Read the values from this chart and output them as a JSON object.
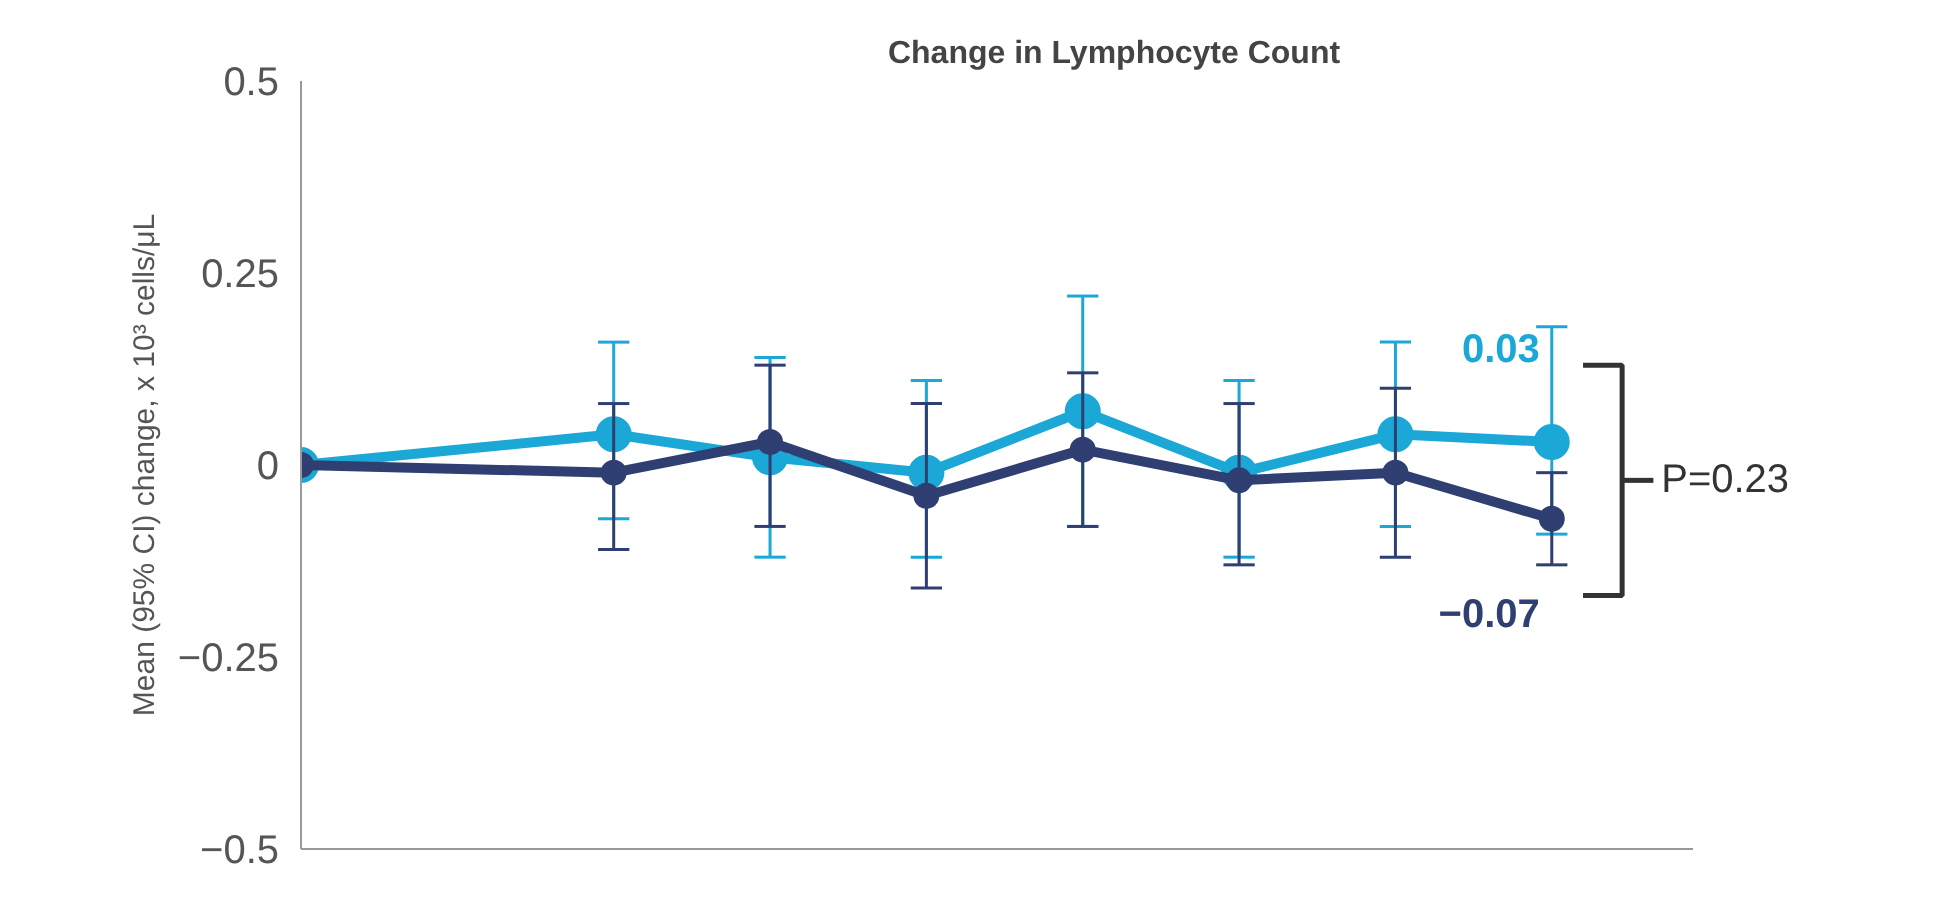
{
  "chart_data": {
    "type": "line",
    "title": "Change in Lymphocyte Count",
    "ylabel": "Mean (95% CI) change, x 10³ cells/μL",
    "categories": [
      null,
      null,
      null,
      null,
      null,
      null,
      null,
      null,
      null
    ],
    "series": [
      {
        "color": "#1ba8d6",
        "values": [
          0,
          null,
          0.04,
          0.01,
          -0.01,
          0.07,
          -0.01,
          0.04,
          0.03
        ],
        "errors": [
          null,
          null,
          [
            -0.07,
            0.16
          ],
          [
            -0.12,
            0.14
          ],
          [
            -0.12,
            0.11
          ],
          [
            -0.08,
            0.22
          ],
          [
            -0.12,
            0.11
          ],
          [
            -0.08,
            0.16
          ],
          [
            -0.09,
            0.18
          ]
        ],
        "value_labels": [
          null,
          null,
          null,
          null,
          null,
          null,
          null,
          null,
          "0.03"
        ]
      },
      {
        "color": "#2f3f72",
        "values": [
          0,
          null,
          -0.01,
          0.03,
          -0.04,
          0.02,
          -0.02,
          -0.01,
          -0.07
        ],
        "errors": [
          null,
          null,
          [
            -0.11,
            0.08
          ],
          [
            -0.08,
            0.13
          ],
          [
            -0.16,
            0.08
          ],
          [
            -0.08,
            0.12
          ],
          [
            -0.13,
            0.08
          ],
          [
            -0.12,
            0.1
          ],
          [
            -0.13,
            -0.01
          ]
        ],
        "value_labels": [
          null,
          null,
          null,
          null,
          null,
          null,
          null,
          null,
          "−0.07"
        ]
      }
    ],
    "ylim": [
      -0.5,
      0.5
    ],
    "yticks": [
      0.5,
      0.25,
      0,
      {
        "value": -0.25,
        "label": "−0.25"
      },
      {
        "value": -0.5,
        "label": "−0.5"
      }
    ],
    "marker": "circle",
    "grid": false,
    "annotations": [
      "P=0.23"
    ]
  }
}
